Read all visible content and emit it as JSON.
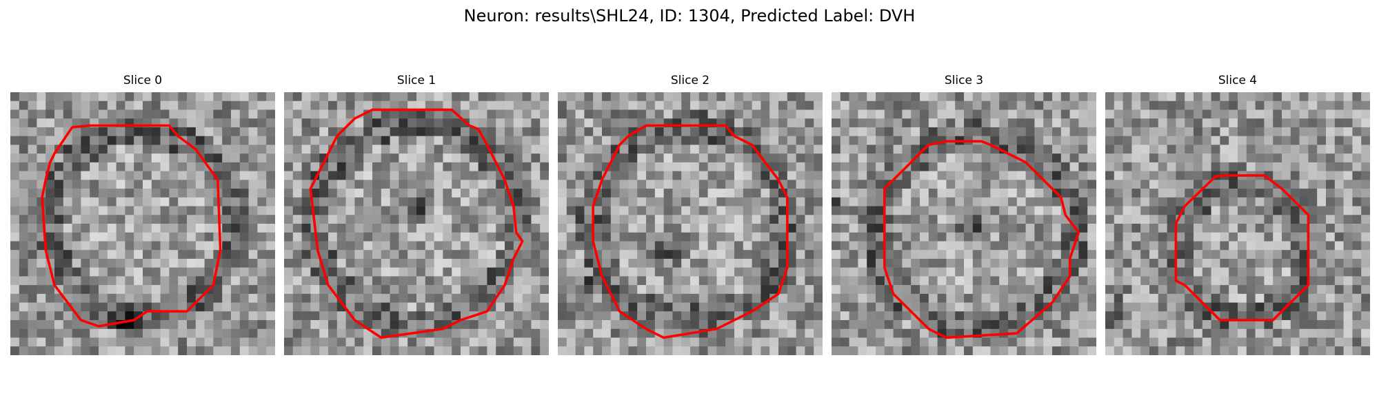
{
  "figure": {
    "title": "Neuron: results\\SHL24, ID: 1304, Predicted Label: DVH",
    "contour_color": "#ff0000",
    "colormap": "gray",
    "panels": [
      {
        "title": "Slice 0"
      },
      {
        "title": "Slice 1"
      },
      {
        "title": "Slice 2"
      },
      {
        "title": "Slice 3"
      },
      {
        "title": "Slice 4"
      }
    ]
  }
}
